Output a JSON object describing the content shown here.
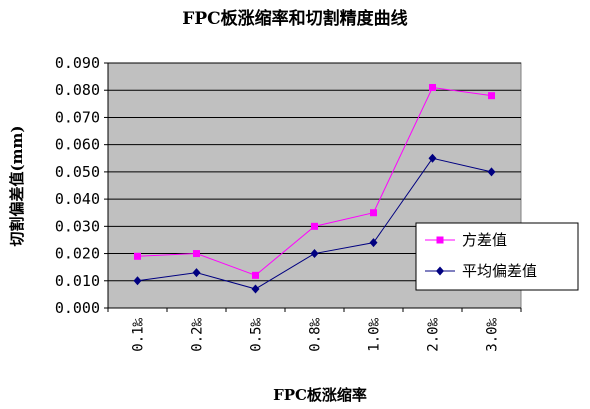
{
  "chart_data": {
    "type": "line",
    "title": "FPC板涨缩率和切割精度曲线",
    "xlabel": "FPC板涨缩率",
    "ylabel": "切割偏差值(mm)",
    "categories": [
      "0.1‰",
      "0.2‰",
      "0.5‰",
      "0.8‰",
      "1.0‰",
      "2.0‰",
      "3.0‰"
    ],
    "ylim": [
      0,
      0.09
    ],
    "ytick_values": [
      0,
      0.01,
      0.02,
      0.03,
      0.04,
      0.05,
      0.06,
      0.07,
      0.08,
      0.09
    ],
    "ytick_labels": [
      "0.000",
      "0.010",
      "0.020",
      "0.030",
      "0.040",
      "0.050",
      "0.060",
      "0.070",
      "0.080",
      "0.090"
    ],
    "grid": "horizontal",
    "legend_position": "right",
    "series": [
      {
        "name": "方差值",
        "color": "#ff00ff",
        "marker": "square",
        "values": [
          0.019,
          0.02,
          0.012,
          0.03,
          0.035,
          0.081,
          0.078
        ]
      },
      {
        "name": "平均偏差值",
        "color": "#000080",
        "marker": "diamond",
        "values": [
          0.01,
          0.013,
          0.007,
          0.02,
          0.024,
          0.055,
          0.05
        ]
      }
    ],
    "plot_background": "#c0c0c0"
  }
}
